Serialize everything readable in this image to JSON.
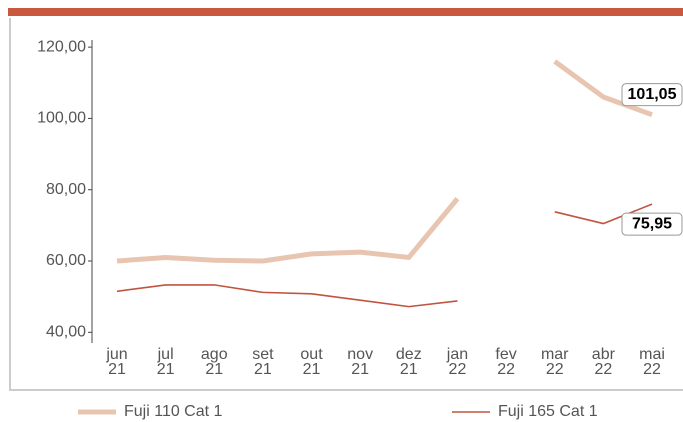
{
  "chart_data": {
    "type": "line",
    "categories": [
      "jun 21",
      "jul 21",
      "ago 21",
      "set 21",
      "out 21",
      "nov 21",
      "dez 21",
      "jan 22",
      "fev 22",
      "mar 22",
      "abr 22",
      "mai 22"
    ],
    "series": [
      {
        "name": "Fuji 110 Cat 1",
        "color": "#e8c5b1",
        "width": 5,
        "values": [
          60,
          61,
          60.2,
          60,
          62,
          62.5,
          61,
          77.5,
          null,
          116,
          106,
          101.05
        ],
        "value_labels": [
          null,
          null,
          null,
          null,
          null,
          null,
          null,
          null,
          null,
          null,
          null,
          "101,05"
        ]
      },
      {
        "name": "Fuji 165 Cat 1",
        "color": "#c0553f",
        "width": 1.6,
        "values": [
          51.5,
          53.3,
          53.3,
          51.2,
          50.8,
          49,
          47.2,
          48.8,
          null,
          73.8,
          70.5,
          75.95
        ],
        "value_labels": [
          null,
          null,
          null,
          null,
          null,
          null,
          null,
          null,
          null,
          null,
          null,
          "75,95"
        ]
      }
    ],
    "ylim": [
      37,
      122
    ],
    "yticks": [
      {
        "value": 40,
        "label": "40,00"
      },
      {
        "value": 60,
        "label": "60,00"
      },
      {
        "value": 80,
        "label": "80,00"
      },
      {
        "value": 100,
        "label": "100,00"
      },
      {
        "value": 120,
        "label": "120,00"
      }
    ]
  }
}
